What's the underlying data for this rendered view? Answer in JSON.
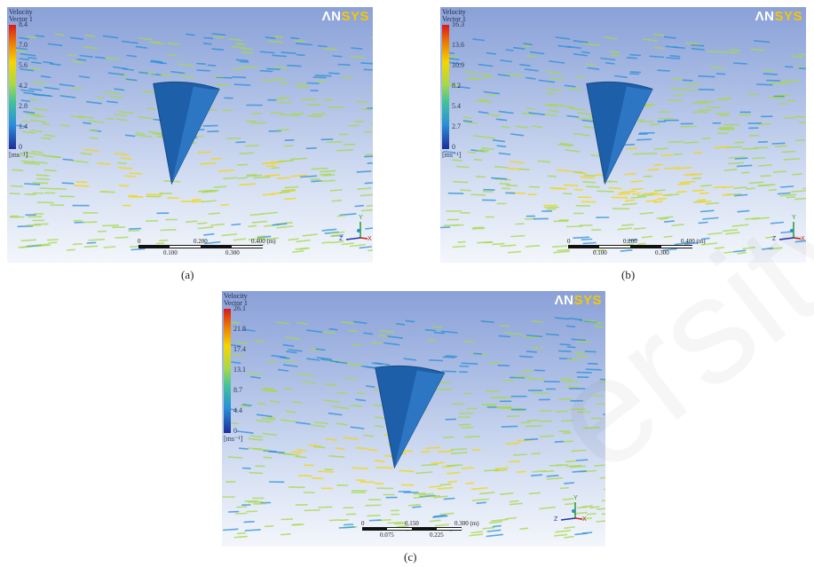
{
  "panels": [
    {
      "caption": "(a)",
      "legend": {
        "title_line1": "Velocity",
        "title_line2": "Vector 1",
        "ticks": [
          "8.4",
          "7.0",
          "5.6",
          "4.2",
          "2.8",
          "1.4",
          "0"
        ],
        "unit": "[ms⁻¹]"
      },
      "logo": {
        "an": "ΛN",
        "sys": "SYS"
      },
      "scale": {
        "top": [
          "0",
          "0.200",
          "0.400 (m)"
        ],
        "bottom": [
          "0.100",
          "0.300"
        ]
      },
      "triad": {
        "y": "Y",
        "z": "Z",
        "x": "X"
      }
    },
    {
      "caption": "(b)",
      "legend": {
        "title_line1": "Velocity",
        "title_line2": "Vector 1",
        "ticks": [
          "16.3",
          "13.6",
          "10.9",
          "8.2",
          "5.4",
          "2.7",
          "0"
        ],
        "unit": "[ms⁻¹]"
      },
      "logo": {
        "an": "ΛN",
        "sys": "SYS"
      },
      "scale": {
        "top": [
          "0",
          "0.200",
          "0.400 (m)"
        ],
        "bottom": [
          "0.100",
          "0.300"
        ]
      },
      "triad": {
        "y": "Y",
        "z": "Z",
        "x": "X"
      }
    },
    {
      "caption": "(c)",
      "legend": {
        "title_line1": "Velocity",
        "title_line2": "Vector 1",
        "ticks": [
          "26.1",
          "21.8",
          "17.4",
          "13.1",
          "8.7",
          "4.4",
          "0"
        ],
        "unit": "[ms⁻¹]"
      },
      "logo": {
        "an": "ΛN",
        "sys": "SYS"
      },
      "scale": {
        "top": [
          "0",
          "0.150",
          "0.300 (m)"
        ],
        "bottom": [
          "0.075",
          "0.225"
        ]
      },
      "triad": {
        "y": "Y",
        "z": "Z",
        "x": "X"
      }
    }
  ],
  "colors": {
    "cone": "#1d5fa8",
    "low": "#2a8fd8",
    "mid": "#a7d84a",
    "high": "#f6d500"
  }
}
